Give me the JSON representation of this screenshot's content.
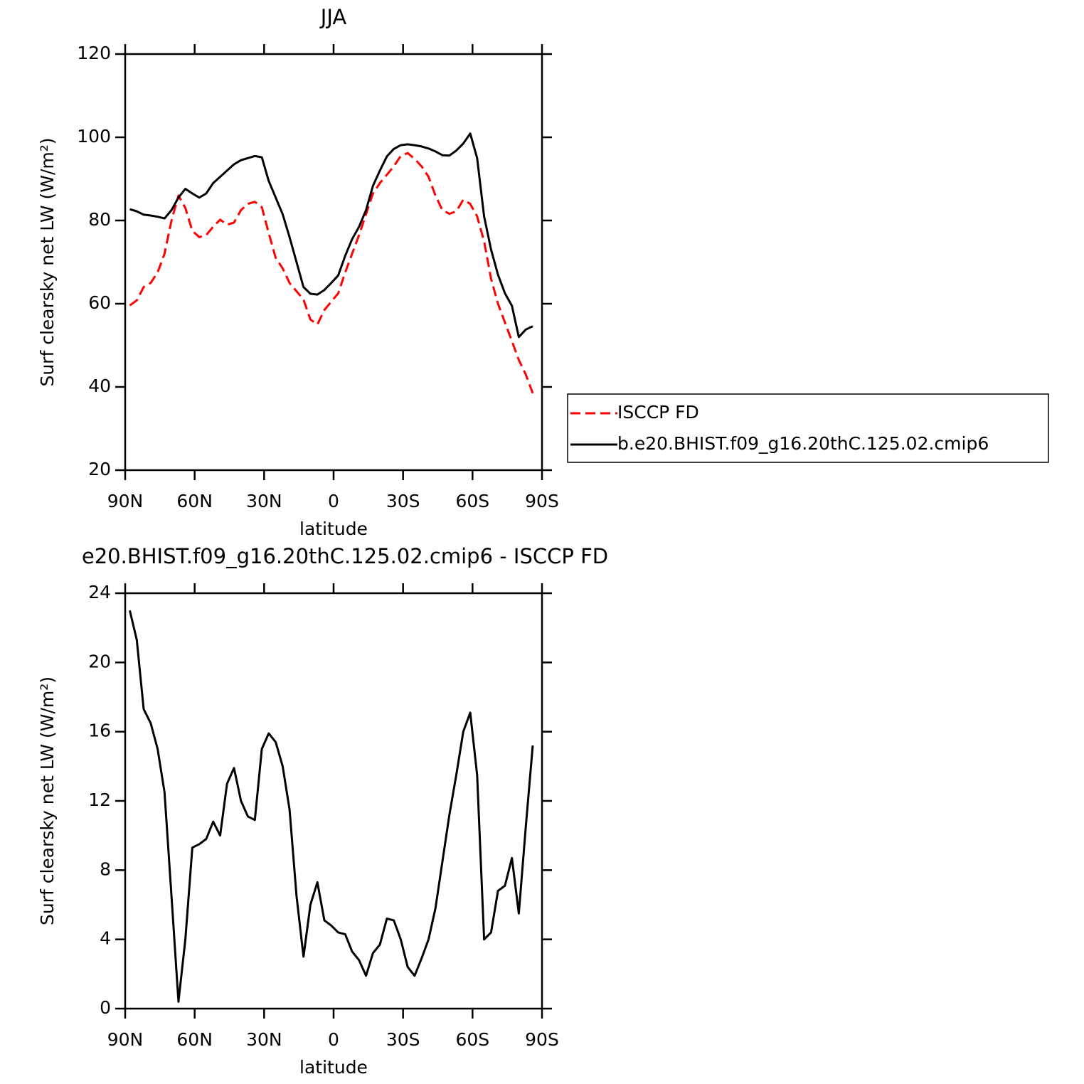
{
  "chart_data": [
    {
      "type": "line",
      "title": "JJA",
      "x_label": "latitude",
      "y_label": "Surf clearsky net LW (W/m²)",
      "x": [
        88,
        85,
        82,
        79,
        76,
        73,
        70,
        67,
        64,
        61,
        58,
        55,
        52,
        49,
        46,
        43,
        40,
        37,
        34,
        31,
        28,
        25,
        22,
        19,
        16,
        13,
        10,
        7,
        4,
        1,
        -2,
        -5,
        -8,
        -11,
        -14,
        -17,
        -20,
        -23,
        -26,
        -29,
        -32,
        -35,
        -38,
        -41,
        -44,
        -47,
        -50,
        -53,
        -56,
        -59,
        -62,
        -65,
        -68,
        -71,
        -74,
        -77,
        -80,
        -83,
        -86
      ],
      "series": [
        {
          "name": "ISCCP FD",
          "color": "#ff0000",
          "dashed": true,
          "values": [
            59.6,
            60.8,
            64,
            65,
            67.5,
            72,
            80,
            86,
            83,
            77.5,
            76,
            76.5,
            78.5,
            80.2,
            79,
            79.5,
            82.5,
            84,
            84.5,
            83.2,
            77,
            71,
            68.5,
            65,
            63,
            61,
            56.2,
            55,
            58.5,
            60.5,
            62.5,
            67.5,
            72,
            76.5,
            81.5,
            86.5,
            89,
            91,
            93,
            95.5,
            96.2,
            94.8,
            93,
            90.5,
            86,
            82.5,
            81.6,
            82.2,
            85,
            84,
            81,
            75,
            66,
            60,
            55.5,
            51,
            46.5,
            43,
            38.5
          ]
        },
        {
          "name": "b.e20.BHIST.f09_g16.20thC.125.02.cmip6",
          "color": "#000000",
          "dashed": false,
          "values": [
            82.7,
            82.2,
            81.4,
            81.2,
            80.9,
            80.5,
            82.5,
            85.5,
            87.6,
            86.5,
            85.5,
            86.5,
            89,
            90.5,
            92,
            93.5,
            94.5,
            95,
            95.5,
            95.2,
            89.5,
            85.5,
            81.5,
            76,
            70,
            64,
            62.4,
            62.2,
            63.3,
            65,
            66.8,
            71.5,
            75.5,
            78.5,
            82.5,
            88.3,
            92,
            95.4,
            97.2,
            98.1,
            98.3,
            98.1,
            97.8,
            97.3,
            96.6,
            95.7,
            95.6,
            96.8,
            98.5,
            100.9,
            95,
            81,
            73,
            67,
            62.5,
            59.5,
            52,
            53.8,
            54.6
          ]
        }
      ],
      "xlim": [
        90,
        -90
      ],
      "xticks": [
        {
          "value": 90,
          "label": "90N"
        },
        {
          "value": 60,
          "label": "60N"
        },
        {
          "value": 30,
          "label": "30N"
        },
        0,
        {
          "value": -30,
          "label": "30S"
        },
        {
          "value": -60,
          "label": "60S"
        },
        {
          "value": -90,
          "label": "90S"
        }
      ],
      "ylim": [
        20,
        120
      ],
      "yticks": [
        20,
        40,
        60,
        80,
        100,
        120
      ],
      "legend": "right"
    },
    {
      "type": "line",
      "title": "e20.BHIST.f09_g16.20thC.125.02.cmip6 - ISCCP FD",
      "x_label": "latitude",
      "y_label": "Surf clearsky net LW (W/m²)",
      "x": [
        88,
        85,
        82,
        79,
        76,
        73,
        70,
        67,
        64,
        61,
        58,
        55,
        52,
        49,
        46,
        43,
        40,
        37,
        34,
        31,
        28,
        25,
        22,
        19,
        16,
        13,
        10,
        7,
        4,
        1,
        -2,
        -5,
        -8,
        -11,
        -14,
        -17,
        -20,
        -23,
        -26,
        -29,
        -32,
        -35,
        -38,
        -41,
        -44,
        -47,
        -50,
        -53,
        -56,
        -59,
        -62,
        -65,
        -68,
        -71,
        -74,
        -77,
        -80,
        -83,
        -86
      ],
      "series": [
        {
          "color": "#000000",
          "dashed": false,
          "values": [
            23,
            21.3,
            17.3,
            16.5,
            15,
            12.5,
            6.5,
            0.4,
            4,
            9.3,
            9.5,
            9.8,
            10.8,
            10,
            13,
            13.9,
            12,
            11.1,
            10.9,
            15,
            15.9,
            15.4,
            14,
            11.5,
            6.5,
            3,
            6,
            7.3,
            5.1,
            4.8,
            4.4,
            4.3,
            3.3,
            2.8,
            1.9,
            3.2,
            3.7,
            5.2,
            5.1,
            4,
            2.4,
            1.9,
            2.9,
            4,
            5.8,
            8.5,
            11.2,
            13.5,
            16,
            17.1,
            13.5,
            4,
            4.4,
            6.8,
            7.1,
            8.7,
            5.5,
            10.5,
            15.2
          ]
        }
      ],
      "xlim": [
        90,
        -90
      ],
      "xticks": [
        {
          "value": 90,
          "label": "90N"
        },
        {
          "value": 60,
          "label": "60N"
        },
        {
          "value": 30,
          "label": "30N"
        },
        0,
        {
          "value": -30,
          "label": "30S"
        },
        {
          "value": -60,
          "label": "60S"
        },
        {
          "value": -90,
          "label": "90S"
        }
      ],
      "ylim": [
        0,
        24
      ],
      "yticks": [
        0,
        4,
        8,
        12,
        16,
        20,
        24
      ]
    }
  ]
}
